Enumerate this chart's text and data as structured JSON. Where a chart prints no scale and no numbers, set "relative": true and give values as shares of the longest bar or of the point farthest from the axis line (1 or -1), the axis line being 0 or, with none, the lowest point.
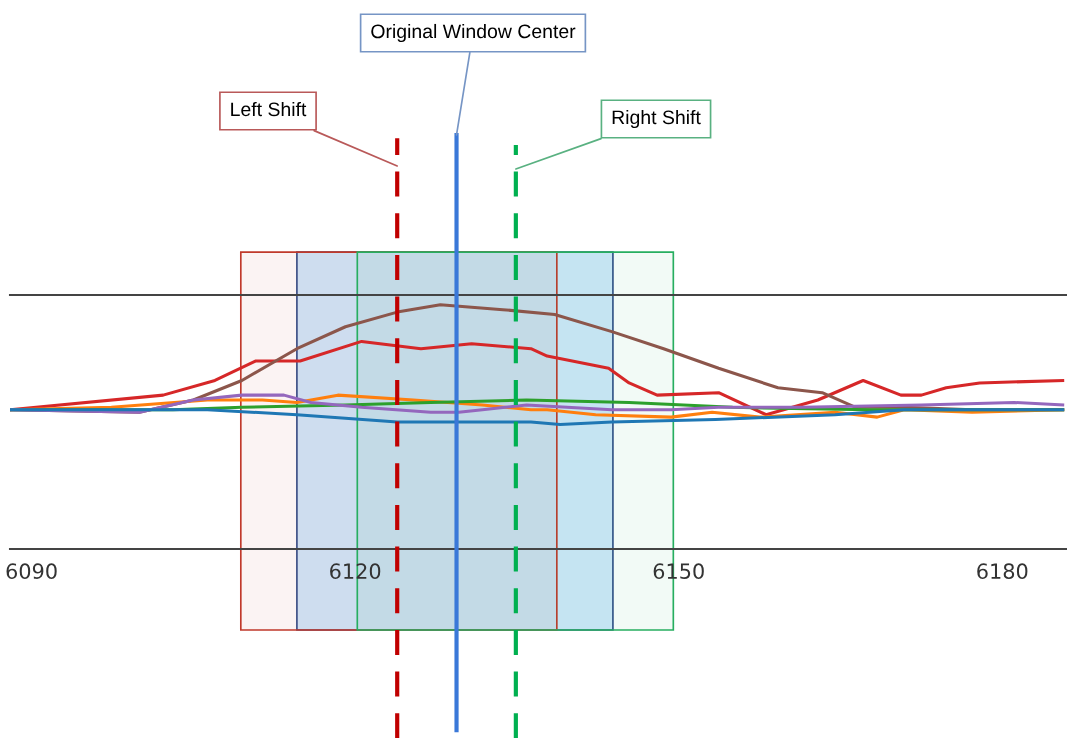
{
  "chart_data": {
    "type": "line",
    "relative": true,
    "xlim": [
      6088,
      6186
    ],
    "xticks": [
      6090,
      6120,
      6150,
      6180
    ],
    "grid": false,
    "marker": "none",
    "line_style": "solid",
    "series": [
      {
        "color": "#d62728",
        "x": [
          6088.0,
          6102.2,
          6107.0,
          6110.8,
          6114.9,
          6120.6,
          6126.1,
          6130.8,
          6136.3,
          6137.8,
          6143.5,
          6145.4,
          6148.0,
          6153.7,
          6158.1,
          6162.9,
          6167.1,
          6170.6,
          6172.5,
          6174.8,
          6177.9,
          6185.6
        ],
        "values": [
          0.57,
          0.63,
          0.69,
          0.77,
          0.77,
          0.85,
          0.82,
          0.84,
          0.82,
          0.79,
          0.74,
          0.68,
          0.63,
          0.64,
          0.55,
          0.61,
          0.69,
          0.63,
          0.63,
          0.66,
          0.68,
          0.69
        ]
      },
      {
        "color": "#8c564b",
        "x": [
          6088.0,
          6100.0,
          6105.0,
          6109.5,
          6114.6,
          6119.1,
          6123.9,
          6127.9,
          6133.7,
          6138.5,
          6143.8,
          6148.6,
          6153.7,
          6159.2,
          6163.3,
          6166.4,
          6170.9,
          6177.2,
          6185.6
        ],
        "values": [
          0.57,
          0.56,
          0.61,
          0.69,
          0.82,
          0.91,
          0.97,
          1.0,
          0.98,
          0.96,
          0.89,
          0.82,
          0.74,
          0.66,
          0.64,
          0.58,
          0.58,
          0.57,
          0.57
        ]
      },
      {
        "color": "#ff7f0e",
        "x": [
          6088.0,
          6097.4,
          6106.3,
          6111.4,
          6114.6,
          6118.4,
          6125.4,
          6131.8,
          6136.3,
          6137.8,
          6142.3,
          6149.3,
          6153.1,
          6157.5,
          6164.5,
          6168.4,
          6170.9,
          6177.2,
          6185.6
        ],
        "values": [
          0.57,
          0.58,
          0.61,
          0.61,
          0.6,
          0.63,
          0.61,
          0.59,
          0.57,
          0.57,
          0.55,
          0.54,
          0.56,
          0.54,
          0.56,
          0.54,
          0.57,
          0.56,
          0.57
        ]
      },
      {
        "color": "#2ca02c",
        "x": [
          6088.0,
          6103.1,
          6109.5,
          6119.1,
          6127.0,
          6135.9,
          6145.4,
          6155.0,
          6167.7,
          6185.6
        ],
        "values": [
          0.57,
          0.57,
          0.58,
          0.59,
          0.6,
          0.61,
          0.6,
          0.58,
          0.57,
          0.57
        ]
      },
      {
        "color": "#9467bd",
        "x": [
          6088.0,
          6100.0,
          6105.0,
          6109.5,
          6113.4,
          6115.9,
          6120.6,
          6127.0,
          6129.6,
          6131.8,
          6135.9,
          6143.8,
          6149.3,
          6153.7,
          6161.4,
          6172.5,
          6181.1,
          6185.6
        ],
        "values": [
          0.57,
          0.56,
          0.61,
          0.63,
          0.63,
          0.6,
          0.58,
          0.56,
          0.56,
          0.57,
          0.59,
          0.57,
          0.57,
          0.58,
          0.58,
          0.59,
          0.6,
          0.59
        ]
      },
      {
        "color": "#1f77b4",
        "x": [
          6088.0,
          6106.3,
          6114.6,
          6123.9,
          6136.3,
          6139.0,
          6143.8,
          6153.4,
          6164.5,
          6170.9,
          6185.6
        ],
        "values": [
          0.57,
          0.57,
          0.55,
          0.52,
          0.52,
          0.51,
          0.52,
          0.53,
          0.55,
          0.57,
          0.57
        ]
      }
    ],
    "bands": [
      {
        "axis": "x",
        "from": 6109.4,
        "to": 6138.7,
        "color": "#c0392b"
      },
      {
        "axis": "x",
        "from": 6114.6,
        "to": 6143.9,
        "color": "#d0e8fb"
      },
      {
        "axis": "x",
        "from": 6120.2,
        "to": 6149.5,
        "color": "#27ae60"
      }
    ],
    "ref_lines": [
      {
        "axis": "x",
        "value": 6129.4,
        "label": "Original Window Center",
        "color": "#3a78d8",
        "line_style": "solid"
      },
      {
        "axis": "x",
        "value": 6123.9,
        "label": "Left Shift",
        "color": "#c00000",
        "line_style": "dashed"
      },
      {
        "axis": "x",
        "value": 6134.9,
        "label": "Right Shift",
        "color": "#00b050",
        "line_style": "dashed"
      }
    ]
  }
}
